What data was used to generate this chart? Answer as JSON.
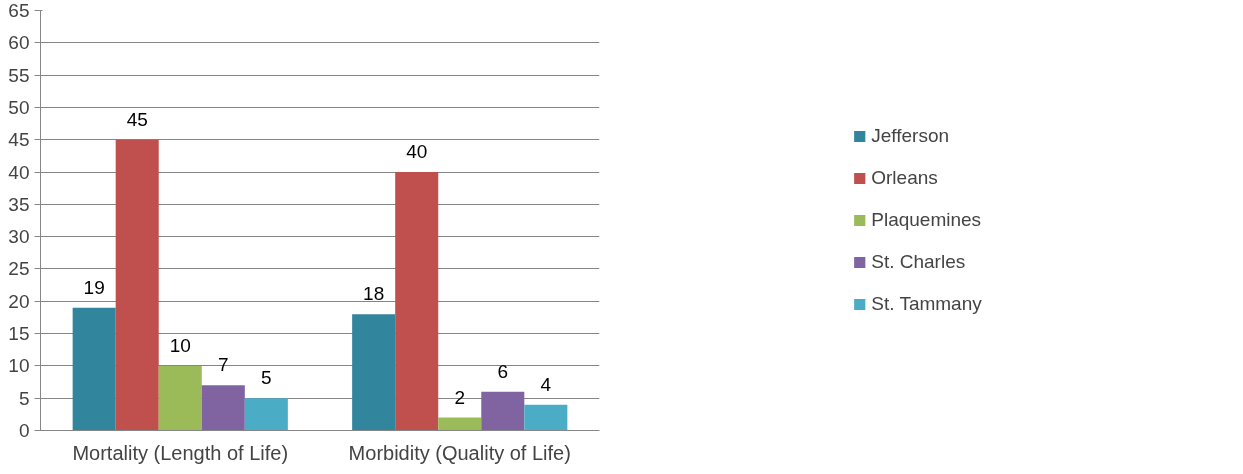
{
  "chart_data": {
    "type": "bar",
    "categories": [
      "Mortality (Length of Life)",
      "Morbidity (Quality of Life)"
    ],
    "series": [
      {
        "name": "Jefferson",
        "color": "#31859c",
        "values": [
          19,
          18
        ]
      },
      {
        "name": "Orleans",
        "color": "#c0504d",
        "values": [
          45,
          40
        ]
      },
      {
        "name": "Plaquemines",
        "color": "#9bbb59",
        "values": [
          10,
          2
        ]
      },
      {
        "name": "St. Charles",
        "color": "#8064a2",
        "values": [
          7,
          6
        ]
      },
      {
        "name": "St. Tammany",
        "color": "#4bacc6",
        "values": [
          5,
          4
        ]
      }
    ],
    "ylim": [
      0,
      65
    ],
    "yticks": [
      0,
      5,
      10,
      15,
      20,
      25,
      30,
      35,
      40,
      45,
      50,
      55,
      60,
      65
    ],
    "grid": "y",
    "legend": "right",
    "data_labels": true
  }
}
